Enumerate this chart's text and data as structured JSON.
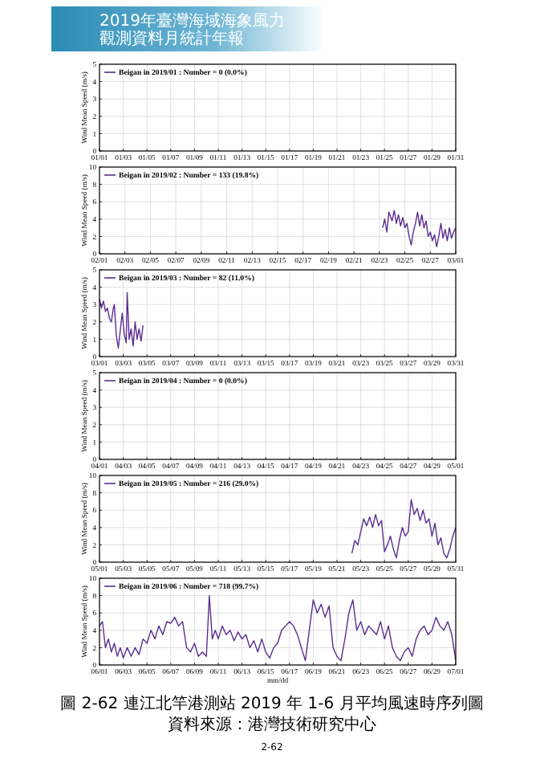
{
  "chart_data": [
    {
      "type": "line",
      "ylabel": "Wind Mean Speed (m/s)",
      "annotations": [
        "2019年臺灣海域海象風力",
        "觀測資料月統計年報"
      ],
      "legend": "top left",
      "grid": true,
      "categories": [
        "01/01",
        "01/03",
        "01/05",
        "01/07",
        "01/09",
        "01/11",
        "01/13",
        "01/15",
        "01/17",
        "01/19",
        "01/21",
        "01/23",
        "01/25",
        "01/27",
        "01/29",
        "01/31"
      ],
      "ylim": [
        0,
        5
      ],
      "yticks": [
        0,
        1,
        2,
        3,
        4,
        5
      ],
      "series": [
        {
          "name": "Beigan in 2019/01 : Number = 0  (0.0%)",
          "color": "#5a2d91",
          "values": [
            null,
            null,
            null,
            null,
            null,
            null,
            null,
            null,
            null,
            null,
            null,
            null,
            null,
            null,
            null,
            null
          ]
        }
      ]
    },
    {
      "type": "line",
      "ylabel": "Wind Mean Speed (m/s)",
      "legend": "top left",
      "grid": true,
      "xlim": [
        "2019-02-01",
        "2019-03-01"
      ],
      "ylim": [
        0,
        10
      ],
      "yticks": [
        0,
        2,
        4,
        6,
        8,
        10
      ],
      "xticks": [
        {
          "value": "2019-02-01",
          "label": "02/01"
        },
        {
          "value": "2019-02-03",
          "label": "02/03"
        },
        {
          "value": "2019-02-05",
          "label": "02/05"
        },
        {
          "value": "2019-02-07",
          "label": "02/07"
        },
        {
          "value": "2019-02-09",
          "label": "02/09"
        },
        {
          "value": "2019-02-11",
          "label": "02/11"
        },
        {
          "value": "2019-02-13",
          "label": "02/13"
        },
        {
          "value": "2019-02-15",
          "label": "02/15"
        },
        {
          "value": "2019-02-17",
          "label": "02/17"
        },
        {
          "value": "2019-02-19",
          "label": "02/19"
        },
        {
          "value": "2019-02-21",
          "label": "02/21"
        },
        {
          "value": "2019-02-23",
          "label": "02/23"
        },
        {
          "value": "2019-02-25",
          "label": "02/25"
        },
        {
          "value": "2019-02-27",
          "label": "02/27"
        },
        {
          "value": "2019-03-01",
          "label": "03/01"
        }
      ],
      "series": [
        {
          "name": "Beigan in 2019/02 : Number = 133  (19.8%)",
          "color": "#5a2d91",
          "x": [
            "2019-02-23T06:00",
            "2019-02-23T10:00",
            "2019-02-23T14:00",
            "2019-02-23T18:00",
            "2019-02-24T00:00",
            "2019-02-24T04:00",
            "2019-02-24T08:00",
            "2019-02-24T12:00",
            "2019-02-24T16:00",
            "2019-02-24T20:00",
            "2019-02-25T00:00",
            "2019-02-25T04:00",
            "2019-02-25T08:00",
            "2019-02-25T12:00",
            "2019-02-25T16:00",
            "2019-02-25T20:00",
            "2019-02-26T00:00",
            "2019-02-26T04:00",
            "2019-02-26T08:00",
            "2019-02-26T12:00",
            "2019-02-26T16:00",
            "2019-02-26T20:00",
            "2019-02-27T00:00",
            "2019-02-27T04:00",
            "2019-02-27T08:00",
            "2019-02-27T12:00",
            "2019-02-27T16:00",
            "2019-02-27T20:00",
            "2019-02-28T00:00",
            "2019-02-28T04:00",
            "2019-02-28T08:00",
            "2019-02-28T12:00",
            "2019-02-28T16:00",
            "2019-02-28T20:00",
            "2019-03-01T00:00"
          ],
          "values": [
            3.0,
            4.0,
            2.5,
            4.8,
            3.8,
            5.0,
            3.5,
            4.5,
            3.2,
            4.2,
            3.0,
            3.5,
            2.0,
            1.0,
            2.5,
            3.5,
            4.8,
            3.2,
            4.5,
            3.0,
            3.8,
            2.0,
            2.5,
            1.5,
            2.2,
            0.8,
            2.0,
            3.5,
            1.8,
            2.8,
            1.5,
            3.0,
            1.8,
            2.5,
            3.0
          ]
        }
      ]
    },
    {
      "type": "line",
      "ylabel": "Wind Mean Speed (m/s)",
      "legend": "top left",
      "grid": true,
      "xlim": [
        "2019-03-01",
        "2019-03-31"
      ],
      "ylim": [
        0,
        5
      ],
      "yticks": [
        0,
        1,
        2,
        3,
        4,
        5
      ],
      "xticks": [
        {
          "value": "2019-03-01",
          "label": "03/01"
        },
        {
          "value": "2019-03-03",
          "label": "03/03"
        },
        {
          "value": "2019-03-05",
          "label": "03/05"
        },
        {
          "value": "2019-03-07",
          "label": "03/07"
        },
        {
          "value": "2019-03-09",
          "label": "03/09"
        },
        {
          "value": "2019-03-11",
          "label": "03/11"
        },
        {
          "value": "2019-03-13",
          "label": "03/13"
        },
        {
          "value": "2019-03-15",
          "label": "03/15"
        },
        {
          "value": "2019-03-17",
          "label": "03/17"
        },
        {
          "value": "2019-03-19",
          "label": "03/19"
        },
        {
          "value": "2019-03-21",
          "label": "03/21"
        },
        {
          "value": "2019-03-23",
          "label": "03/23"
        },
        {
          "value": "2019-03-25",
          "label": "03/25"
        },
        {
          "value": "2019-03-27",
          "label": "03/27"
        },
        {
          "value": "2019-03-29",
          "label": "03/29"
        },
        {
          "value": "2019-03-31",
          "label": "03/31"
        }
      ],
      "series": [
        {
          "name": "Beigan in 2019/03 : Number = 82  (11.0%)",
          "color": "#5a2d91",
          "x": [
            "2019-03-01T00:00",
            "2019-03-01T04:00",
            "2019-03-01T08:00",
            "2019-03-01T12:00",
            "2019-03-01T16:00",
            "2019-03-01T20:00",
            "2019-03-02T00:00",
            "2019-03-02T04:00",
            "2019-03-02T06:00",
            "2019-03-02T10:00",
            "2019-03-02T14:00",
            "2019-03-02T18:00",
            "2019-03-02T22:00",
            "2019-03-03T02:00",
            "2019-03-03T06:00",
            "2019-03-03T08:00",
            "2019-03-03T12:00",
            "2019-03-03T16:00",
            "2019-03-03T20:00",
            "2019-03-04T00:00",
            "2019-03-04T04:00",
            "2019-03-04T08:00",
            "2019-03-04T12:00",
            "2019-03-04T16:00"
          ],
          "values": [
            3.3,
            2.8,
            3.2,
            2.6,
            2.8,
            2.2,
            2.0,
            2.8,
            3.0,
            1.2,
            0.5,
            1.5,
            2.5,
            1.3,
            0.8,
            3.7,
            1.0,
            1.6,
            0.6,
            2.0,
            1.0,
            1.6,
            0.9,
            1.8
          ]
        }
      ]
    },
    {
      "type": "line",
      "ylabel": "Wind Mean Speed (m/s)",
      "legend": "top left",
      "grid": true,
      "categories": [
        "04/01",
        "04/03",
        "04/05",
        "04/07",
        "04/09",
        "04/11",
        "04/13",
        "04/15",
        "04/17",
        "04/19",
        "04/21",
        "04/23",
        "04/25",
        "04/27",
        "04/29",
        "05/01"
      ],
      "ylim": [
        0,
        5
      ],
      "yticks": [
        0,
        1,
        2,
        3,
        4,
        5
      ],
      "series": [
        {
          "name": "Beigan in 2019/04 : Number = 0  (0.0%)",
          "color": "#5a2d91",
          "values": [
            null,
            null,
            null,
            null,
            null,
            null,
            null,
            null,
            null,
            null,
            null,
            null,
            null,
            null,
            null,
            null
          ]
        }
      ]
    },
    {
      "type": "line",
      "ylabel": "Wind Mean Speed (m/s)",
      "legend": "top left",
      "grid": true,
      "xlim": [
        "2019-05-01",
        "2019-05-31"
      ],
      "ylim": [
        0,
        10
      ],
      "yticks": [
        0,
        2,
        4,
        6,
        8,
        10
      ],
      "xticks": [
        {
          "value": "2019-05-01",
          "label": "05/01"
        },
        {
          "value": "2019-05-03",
          "label": "05/03"
        },
        {
          "value": "2019-05-05",
          "label": "05/05"
        },
        {
          "value": "2019-05-07",
          "label": "05/07"
        },
        {
          "value": "2019-05-09",
          "label": "05/09"
        },
        {
          "value": "2019-05-11",
          "label": "05/11"
        },
        {
          "value": "2019-05-13",
          "label": "05/13"
        },
        {
          "value": "2019-05-15",
          "label": "05/15"
        },
        {
          "value": "2019-05-17",
          "label": "05/17"
        },
        {
          "value": "2019-05-19",
          "label": "05/19"
        },
        {
          "value": "2019-05-21",
          "label": "05/21"
        },
        {
          "value": "2019-05-23",
          "label": "05/23"
        },
        {
          "value": "2019-05-25",
          "label": "05/25"
        },
        {
          "value": "2019-05-27",
          "label": "05/27"
        },
        {
          "value": "2019-05-29",
          "label": "05/29"
        },
        {
          "value": "2019-05-31",
          "label": "05/31"
        }
      ],
      "series": [
        {
          "name": "Beigan in 2019/05 : Number = 216  (29.0%)",
          "color": "#5a2d91",
          "x": [
            "2019-05-22T06:00",
            "2019-05-22T12:00",
            "2019-05-22T18:00",
            "2019-05-23T00:00",
            "2019-05-23T06:00",
            "2019-05-23T12:00",
            "2019-05-23T18:00",
            "2019-05-24T00:00",
            "2019-05-24T06:00",
            "2019-05-24T12:00",
            "2019-05-24T18:00",
            "2019-05-25T00:00",
            "2019-05-25T06:00",
            "2019-05-25T12:00",
            "2019-05-25T18:00",
            "2019-05-26T00:00",
            "2019-05-26T06:00",
            "2019-05-26T12:00",
            "2019-05-26T18:00",
            "2019-05-27T00:00",
            "2019-05-27T06:00",
            "2019-05-27T12:00",
            "2019-05-27T18:00",
            "2019-05-28T00:00",
            "2019-05-28T06:00",
            "2019-05-28T12:00",
            "2019-05-28T18:00",
            "2019-05-29T00:00",
            "2019-05-29T06:00",
            "2019-05-29T12:00",
            "2019-05-29T18:00",
            "2019-05-30T00:00",
            "2019-05-30T06:00",
            "2019-05-30T12:00",
            "2019-05-30T18:00",
            "2019-05-31T00:00"
          ],
          "values": [
            1.0,
            2.5,
            2.0,
            3.5,
            5.0,
            4.2,
            5.2,
            4.0,
            5.5,
            4.2,
            4.8,
            1.2,
            2.0,
            3.0,
            1.5,
            0.5,
            2.5,
            4.0,
            3.0,
            3.5,
            7.2,
            5.5,
            6.2,
            4.8,
            6.0,
            4.5,
            5.0,
            3.0,
            4.5,
            2.0,
            2.8,
            1.0,
            0.5,
            1.5,
            3.0,
            4.0
          ]
        }
      ]
    },
    {
      "type": "line",
      "ylabel": "Wind Mean Speed (m/s)",
      "xlabel": "mm/dd",
      "annotations": [
        "圖 2-62 連江北竿港測站 2019 年 1-6 月平均風速時序列圖",
        "資料來源：港灣技術研究中心",
        "2-62"
      ],
      "legend": "top left",
      "grid": true,
      "xlim": [
        "2019-06-01",
        "2019-07-01"
      ],
      "ylim": [
        0,
        10
      ],
      "yticks": [
        0,
        2,
        4,
        6,
        8,
        10
      ],
      "xticks": [
        {
          "value": "2019-06-01",
          "label": "06/01"
        },
        {
          "value": "2019-06-03",
          "label": "06/03"
        },
        {
          "value": "2019-06-05",
          "label": "06/05"
        },
        {
          "value": "2019-06-07",
          "label": "06/07"
        },
        {
          "value": "2019-06-09",
          "label": "06/09"
        },
        {
          "value": "2019-06-11",
          "label": "06/11"
        },
        {
          "value": "2019-06-13",
          "label": "06/13"
        },
        {
          "value": "2019-06-15",
          "label": "06/15"
        },
        {
          "value": "2019-06-17",
          "label": "06/17"
        },
        {
          "value": "2019-06-19",
          "label": "06/19"
        },
        {
          "value": "2019-06-21",
          "label": "06/21"
        },
        {
          "value": "2019-06-23",
          "label": "06/23"
        },
        {
          "value": "2019-06-25",
          "label": "06/25"
        },
        {
          "value": "2019-06-27",
          "label": "06/27"
        },
        {
          "value": "2019-06-29",
          "label": "06/29"
        },
        {
          "value": "2019-07-01",
          "label": "07/01"
        }
      ],
      "series": [
        {
          "name": "Beigan in 2019/06 : Number = 718  (99.7%)",
          "color": "#5a2d91",
          "x": [
            "2019-06-01T00:00",
            "2019-06-01T06:00",
            "2019-06-01T12:00",
            "2019-06-01T18:00",
            "2019-06-02T00:00",
            "2019-06-02T06:00",
            "2019-06-02T12:00",
            "2019-06-02T18:00",
            "2019-06-03T00:00",
            "2019-06-03T08:00",
            "2019-06-03T16:00",
            "2019-06-04T00:00",
            "2019-06-04T08:00",
            "2019-06-04T16:00",
            "2019-06-05T00:00",
            "2019-06-05T08:00",
            "2019-06-05T16:00",
            "2019-06-06T00:00",
            "2019-06-06T08:00",
            "2019-06-06T16:00",
            "2019-06-07T00:00",
            "2019-06-07T08:00",
            "2019-06-07T16:00",
            "2019-06-08T00:00",
            "2019-06-08T08:00",
            "2019-06-08T16:00",
            "2019-06-09T00:00",
            "2019-06-09T08:00",
            "2019-06-09T16:00",
            "2019-06-10T00:00",
            "2019-06-10T06:00",
            "2019-06-10T12:00",
            "2019-06-10T18:00",
            "2019-06-11T00:00",
            "2019-06-11T08:00",
            "2019-06-11T16:00",
            "2019-06-12T00:00",
            "2019-06-12T08:00",
            "2019-06-12T16:00",
            "2019-06-13T00:00",
            "2019-06-13T08:00",
            "2019-06-13T16:00",
            "2019-06-14T00:00",
            "2019-06-14T08:00",
            "2019-06-14T16:00",
            "2019-06-15T00:00",
            "2019-06-15T08:00",
            "2019-06-15T16:00",
            "2019-06-16T00:00",
            "2019-06-16T08:00",
            "2019-06-16T16:00",
            "2019-06-17T00:00",
            "2019-06-17T08:00",
            "2019-06-17T16:00",
            "2019-06-18T00:00",
            "2019-06-18T08:00",
            "2019-06-18T16:00",
            "2019-06-19T00:00",
            "2019-06-19T08:00",
            "2019-06-19T16:00",
            "2019-06-20T00:00",
            "2019-06-20T08:00",
            "2019-06-20T16:00",
            "2019-06-21T00:00",
            "2019-06-21T08:00",
            "2019-06-21T16:00",
            "2019-06-22T00:00",
            "2019-06-22T08:00",
            "2019-06-22T16:00",
            "2019-06-23T00:00",
            "2019-06-23T08:00",
            "2019-06-23T16:00",
            "2019-06-24T00:00",
            "2019-06-24T08:00",
            "2019-06-24T16:00",
            "2019-06-25T00:00",
            "2019-06-25T08:00",
            "2019-06-25T16:00",
            "2019-06-26T00:00",
            "2019-06-26T08:00",
            "2019-06-26T16:00",
            "2019-06-27T00:00",
            "2019-06-27T08:00",
            "2019-06-27T16:00",
            "2019-06-28T00:00",
            "2019-06-28T08:00",
            "2019-06-28T16:00",
            "2019-06-29T00:00",
            "2019-06-29T08:00",
            "2019-06-29T16:00",
            "2019-06-30T00:00",
            "2019-06-30T08:00",
            "2019-06-30T16:00",
            "2019-07-01T00:00"
          ],
          "values": [
            4.5,
            5.0,
            2.0,
            3.0,
            1.5,
            2.5,
            1.0,
            2.0,
            0.8,
            2.0,
            1.0,
            2.0,
            1.2,
            3.0,
            2.5,
            4.0,
            3.0,
            4.5,
            3.5,
            5.0,
            4.8,
            5.5,
            4.5,
            5.0,
            2.0,
            1.5,
            2.5,
            1.0,
            1.5,
            1.0,
            8.0,
            3.0,
            4.0,
            3.0,
            4.5,
            3.5,
            4.0,
            2.8,
            3.8,
            3.0,
            3.5,
            2.0,
            2.8,
            1.5,
            3.0,
            1.5,
            0.8,
            2.0,
            2.5,
            4.0,
            4.5,
            5.0,
            4.5,
            3.5,
            2.0,
            0.5,
            4.0,
            7.5,
            6.0,
            7.0,
            5.5,
            6.8,
            2.0,
            1.0,
            0.5,
            3.0,
            6.0,
            7.5,
            4.0,
            5.0,
            3.5,
            4.5,
            4.0,
            3.5,
            5.0,
            3.0,
            4.5,
            2.0,
            1.0,
            0.5,
            1.5,
            2.0,
            1.0,
            3.0,
            4.0,
            4.5,
            3.5,
            4.0,
            5.5,
            4.5,
            4.0,
            5.0,
            3.5,
            0.5
          ]
        }
      ]
    }
  ]
}
